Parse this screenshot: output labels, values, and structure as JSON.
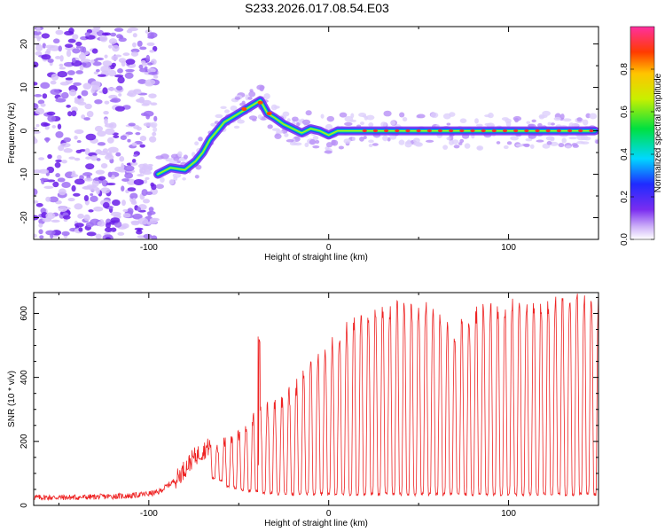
{
  "title": "S233.2026.017.08.54.E03",
  "colors": {
    "snr_line": "#ee2222",
    "spectrum_blob": "#7a2df0",
    "frame": "#000000"
  },
  "chart_data": [
    {
      "type": "heatmap",
      "title": "S233.2026.017.08.54.E03",
      "xlabel": "Height of straight line (km)",
      "ylabel": "Frequency (Hz)",
      "xlim": [
        -164,
        150
      ],
      "ylim": [
        -25,
        24
      ],
      "x_ticks": [
        "-100",
        "0",
        "100"
      ],
      "y_ticks": [
        "-20",
        "-10",
        "0",
        "10",
        "20"
      ],
      "colorbar": {
        "label": "Normalized spectral amplitude",
        "range": [
          0,
          1
        ],
        "ticks": [
          "0.0",
          "0.2",
          "0.4",
          "0.6",
          "0.8"
        ],
        "colormap": "rainbow (white/violet low, red high)"
      },
      "ridge": {
        "x": [
          -95,
          -88,
          -80,
          -74,
          -70,
          -66,
          -62,
          -58,
          -54,
          -50,
          -46,
          -42,
          -38,
          -34,
          -30,
          -25,
          -20,
          -15,
          -10,
          -5,
          0,
          5,
          10,
          20,
          40,
          60,
          80,
          100,
          120,
          148
        ],
        "y": [
          -10,
          -8.5,
          -9,
          -7,
          -5,
          -2,
          0,
          2,
          3,
          4,
          5,
          6,
          7,
          4,
          3,
          1.5,
          0.5,
          -0.5,
          0.5,
          0,
          -1,
          0,
          0,
          0,
          0,
          0,
          0,
          0,
          0,
          0
        ]
      }
    },
    {
      "type": "line",
      "xlabel": "Height of straight line (km)",
      "ylabel": "SNR (10 * v/v)",
      "xlim": [
        -164,
        150
      ],
      "ylim": [
        0,
        665
      ],
      "x_ticks": [
        "-100",
        "0",
        "100"
      ],
      "y_ticks": [
        "0",
        "200",
        "400",
        "600"
      ],
      "envelope": {
        "x": [
          -164,
          -140,
          -110,
          -95,
          -85,
          -75,
          -65,
          -55,
          -45,
          -35,
          -25,
          -15,
          -5,
          5,
          15,
          25,
          35,
          45,
          55,
          65,
          70,
          75,
          85,
          95,
          105,
          115,
          125,
          135,
          150
        ],
        "y": [
          25,
          25,
          30,
          40,
          80,
          150,
          190,
          210,
          250,
          300,
          320,
          390,
          450,
          520,
          570,
          600,
          610,
          620,
          610,
          560,
          500,
          570,
          600,
          610,
          620,
          620,
          630,
          630,
          640
        ]
      },
      "dips": {
        "x": [
          -64,
          -60,
          -56,
          -52,
          -48,
          -44,
          -40,
          -36,
          -32,
          -28,
          -24,
          -20,
          -16,
          -12,
          -8,
          -4,
          0,
          4,
          8,
          12,
          16,
          20,
          24,
          28,
          32,
          36,
          40,
          44,
          48,
          52,
          56,
          60,
          64,
          68,
          72,
          76,
          80,
          84,
          88,
          92,
          96,
          100,
          104,
          108,
          112,
          116,
          120,
          124,
          128,
          132,
          136,
          140,
          144,
          148
        ],
        "y": [
          80,
          70,
          55,
          50,
          45,
          40,
          40,
          35,
          35,
          30,
          30,
          30,
          30,
          30,
          30,
          30,
          30,
          30,
          30,
          30,
          30,
          30,
          30,
          30,
          30,
          30,
          30,
          30,
          30,
          30,
          30,
          30,
          30,
          30,
          30,
          30,
          30,
          30,
          30,
          30,
          30,
          30,
          30,
          30,
          30,
          30,
          30,
          30,
          30,
          30,
          30,
          30,
          30,
          30
        ]
      }
    }
  ]
}
